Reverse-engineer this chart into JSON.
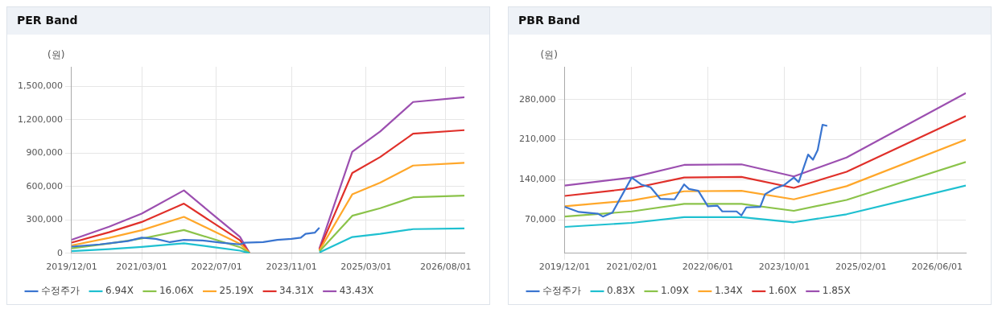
{
  "chart_data": [
    {
      "type": "line",
      "title": "PER Band",
      "ylabel": "(원)",
      "grid": true,
      "legend": "bottom",
      "x": [
        "2019-12-01",
        "2020-08-01",
        "2021-03-01",
        "2021-12-01",
        "2022-06-01",
        "2022-12-01",
        "2023-02-01",
        "2023-09-01",
        "2024-05-01",
        "2024-12-01",
        "2025-06-01",
        "2026-01-01",
        "2026-12-01"
      ],
      "xlim": [
        "2019-12-01",
        "2026-12-01"
      ],
      "xticks": [
        {
          "value": "2019-12-01",
          "label": "2019/12/01"
        },
        {
          "value": "2021-03-01",
          "label": "2021/03/01"
        },
        {
          "value": "2022-07-01",
          "label": "2022/07/01"
        },
        {
          "value": "2023-11-01",
          "label": "2023/11/01"
        },
        {
          "value": "2025-03-01",
          "label": "2025/03/01"
        },
        {
          "value": "2026-08-01",
          "label": "2026/08/01"
        }
      ],
      "ylim": [
        0,
        1675000
      ],
      "yticks": [
        {
          "value": 0,
          "label": "0"
        },
        {
          "value": 300000,
          "label": "300,000"
        },
        {
          "value": 600000,
          "label": "600,000"
        },
        {
          "value": 900000,
          "label": "900,000"
        },
        {
          "value": 1200000,
          "label": "1,200,000"
        },
        {
          "value": 1500000,
          "label": "1,500,000"
        }
      ],
      "series": [
        {
          "name": "수정주가",
          "color": "#3a75d0",
          "x": [
            "2019-12-01",
            "2020-06-01",
            "2020-12-01",
            "2021-03-01",
            "2021-06-01",
            "2021-09-01",
            "2021-12-01",
            "2022-04-01",
            "2022-08-01",
            "2022-12-01",
            "2023-01-01",
            "2023-05-01",
            "2023-08-01",
            "2023-11-01",
            "2024-01-01",
            "2024-02-01",
            "2024-04-01",
            "2024-05-01"
          ],
          "values": [
            60000,
            80000,
            110000,
            140000,
            130000,
            100000,
            120000,
            115000,
            95000,
            80000,
            95000,
            100000,
            120000,
            130000,
            140000,
            175000,
            185000,
            230000
          ]
        },
        {
          "name": "6.94X",
          "color": "#1fc0d0",
          "values": [
            19000,
            38000,
            57000,
            90000,
            57000,
            24000,
            1000,
            null,
            7000,
            146000,
            175000,
            217000,
            224000
          ]
        },
        {
          "name": "16.06X",
          "color": "#8bc34a",
          "values": [
            45000,
            88000,
            132000,
            209000,
            132000,
            55000,
            2000,
            null,
            16000,
            337000,
            405000,
            503000,
            518000
          ]
        },
        {
          "name": "25.19X",
          "color": "#ffa72a",
          "values": [
            71000,
            139000,
            207000,
            327000,
            207000,
            86000,
            3000,
            null,
            25000,
            529000,
            635000,
            788000,
            812000
          ]
        },
        {
          "name": "34.31X",
          "color": "#e0302a",
          "values": [
            96000,
            189000,
            281000,
            446000,
            281000,
            117000,
            3000,
            null,
            34000,
            721000,
            865000,
            1074000,
            1106000
          ]
        },
        {
          "name": "43.43X",
          "color": "#9c4fb0",
          "values": [
            122000,
            239000,
            356000,
            565000,
            356000,
            148000,
            4000,
            null,
            43000,
            912000,
            1094000,
            1359000,
            1401000
          ]
        }
      ]
    },
    {
      "type": "line",
      "title": "PBR Band",
      "ylabel": "(원)",
      "grid": true,
      "legend": "bottom",
      "x": [
        "2019-12-01",
        "2021-02-01",
        "2022-01-01",
        "2023-01-01",
        "2023-12-01",
        "2024-11-01",
        "2026-12-01"
      ],
      "xlim": [
        "2019-12-01",
        "2026-12-01"
      ],
      "xticks": [
        {
          "value": "2019-12-01",
          "label": "2019/12/01"
        },
        {
          "value": "2021-02-01",
          "label": "2021/02/01"
        },
        {
          "value": "2022-06-01",
          "label": "2022/06/01"
        },
        {
          "value": "2023-10-01",
          "label": "2023/10/01"
        },
        {
          "value": "2025-02-01",
          "label": "2025/02/01"
        },
        {
          "value": "2026-06-01",
          "label": "2026/06/01"
        }
      ],
      "ylim": [
        12000,
        337000
      ],
      "yticks": [
        {
          "value": 70000,
          "label": "70,000"
        },
        {
          "value": 140000,
          "label": "140,000"
        },
        {
          "value": 210000,
          "label": "210,000"
        },
        {
          "value": 280000,
          "label": "280,000"
        }
      ],
      "series": [
        {
          "name": "수정주가",
          "color": "#3a75d0",
          "x": [
            "2019-12-01",
            "2020-03-01",
            "2020-07-01",
            "2020-08-01",
            "2020-10-01",
            "2021-02-01",
            "2021-04-01",
            "2021-06-01",
            "2021-08-01",
            "2021-11-01",
            "2022-01-01",
            "2022-02-01",
            "2022-04-01",
            "2022-06-01",
            "2022-08-01",
            "2022-09-01",
            "2022-12-01",
            "2023-01-01",
            "2023-02-01",
            "2023-05-01",
            "2023-06-01",
            "2023-08-01",
            "2023-10-01",
            "2023-12-01",
            "2024-01-01",
            "2024-03-01",
            "2024-04-01",
            "2024-05-01",
            "2024-06-01",
            "2024-07-01"
          ],
          "values": [
            93000,
            84000,
            81000,
            76000,
            83000,
            144000,
            132000,
            127000,
            107000,
            106000,
            132000,
            124000,
            121000,
            94000,
            95000,
            85000,
            85000,
            78000,
            92000,
            93000,
            115000,
            125000,
            131000,
            144000,
            136000,
            184000,
            175000,
            192000,
            236000,
            234000
          ]
        },
        {
          "name": "0.83X",
          "color": "#1fc0d0",
          "values": [
            58000,
            65000,
            75000,
            75000,
            66000,
            80000,
            130000
          ]
        },
        {
          "name": "1.09X",
          "color": "#8bc34a",
          "values": [
            76000,
            85000,
            98000,
            98000,
            86000,
            105000,
            171000
          ]
        },
        {
          "name": "1.34X",
          "color": "#ffa72a",
          "values": [
            94000,
            104000,
            120000,
            121000,
            106000,
            129000,
            210000
          ]
        },
        {
          "name": "1.60X",
          "color": "#e0302a",
          "values": [
            112000,
            125000,
            144000,
            145000,
            126000,
            154000,
            251000
          ]
        },
        {
          "name": "1.85X",
          "color": "#9c4fb0",
          "values": [
            130000,
            144000,
            166000,
            167000,
            146000,
            179000,
            291000
          ]
        }
      ]
    }
  ]
}
